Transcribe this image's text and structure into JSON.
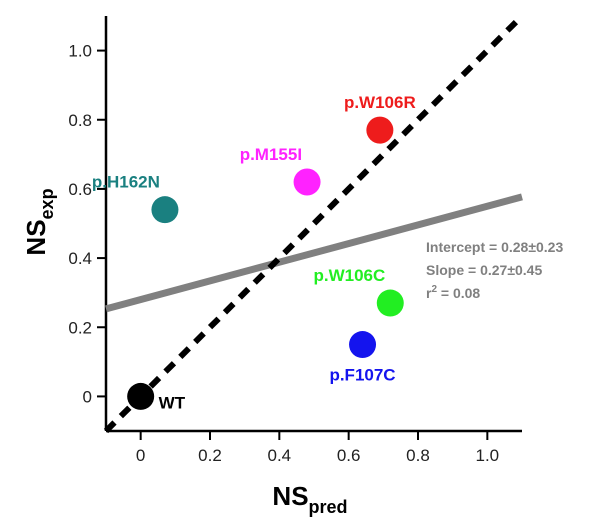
{
  "chart_data": {
    "type": "scatter",
    "xlabel": {
      "main": "NS",
      "sub": "pred"
    },
    "ylabel": {
      "main": "NS",
      "sub": "exp"
    },
    "xlim": [
      -0.1,
      1.1
    ],
    "ylim": [
      -0.1,
      1.1
    ],
    "x_ticks": [
      {
        "value": 0,
        "label": "0"
      },
      {
        "value": 0.2,
        "label": "0.2"
      },
      {
        "value": 0.4,
        "label": "0.4"
      },
      {
        "value": 0.6,
        "label": "0.6"
      },
      {
        "value": 0.8,
        "label": "0.8"
      },
      {
        "value": 1.0,
        "label": "1.0"
      }
    ],
    "y_ticks": [
      {
        "value": 0,
        "label": "0"
      },
      {
        "value": 0.2,
        "label": "0.2"
      },
      {
        "value": 0.4,
        "label": "0.4"
      },
      {
        "value": 0.6,
        "label": "0.6"
      },
      {
        "value": 0.8,
        "label": "0.8"
      },
      {
        "value": 1.0,
        "label": "1.0"
      }
    ],
    "points": [
      {
        "name": "WT",
        "x": 0.0,
        "y": 0.0,
        "color": "#000000",
        "label_pos": "right"
      },
      {
        "name": "p.H162N",
        "x": 0.07,
        "y": 0.54,
        "color": "#1a8080",
        "label_pos": "above-left"
      },
      {
        "name": "p.M155I",
        "x": 0.48,
        "y": 0.62,
        "color": "#ff22ff",
        "label_pos": "above-left"
      },
      {
        "name": "p.W106R",
        "x": 0.69,
        "y": 0.77,
        "color": "#ee1c1c",
        "label_pos": "above"
      },
      {
        "name": "p.W106C",
        "x": 0.72,
        "y": 0.27,
        "color": "#22ee22",
        "label_pos": "above-left"
      },
      {
        "name": "p.F107C",
        "x": 0.64,
        "y": 0.15,
        "color": "#1414ee",
        "label_pos": "below"
      }
    ],
    "identity_line": {
      "style": "dashed",
      "color": "#000000",
      "slope": 1,
      "intercept": 0
    },
    "regression_line": {
      "color": "#808080",
      "slope": 0.27,
      "intercept": 0.28
    },
    "annotation": {
      "color": "#808080",
      "lines": [
        {
          "text": "Intercept = 0.28±0.23"
        },
        {
          "text": "Slope = 0.27±0.45"
        },
        {
          "main": "r",
          "sup": "2",
          "rest": " = 0.08"
        }
      ]
    },
    "grid": false,
    "legend": "none"
  }
}
